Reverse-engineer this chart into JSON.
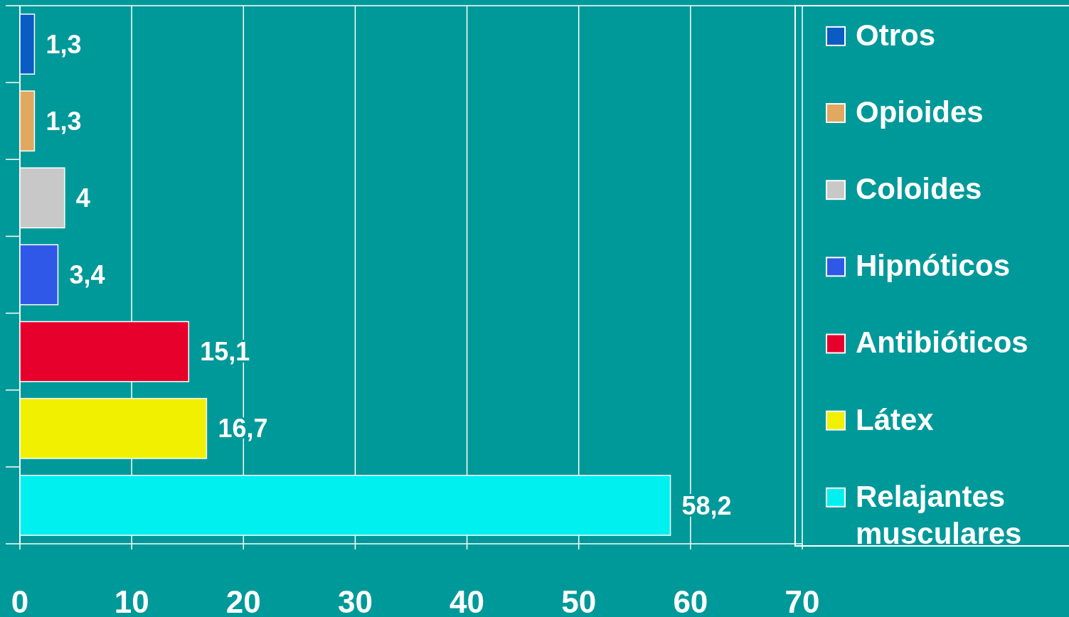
{
  "chart_data": {
    "type": "bar",
    "orientation": "horizontal",
    "categories": [
      null,
      null,
      null,
      null,
      null,
      null,
      null
    ],
    "series": [
      {
        "name": "Otros",
        "color": "#0a5cc4",
        "values": [
          1.3,
          null,
          null,
          null,
          null,
          null,
          null
        ],
        "value_labels": [
          "1,3",
          null,
          null,
          null,
          null,
          null,
          null
        ]
      },
      {
        "name": "Opioides",
        "color": "#e0a860",
        "values": [
          null,
          1.3,
          null,
          null,
          null,
          null,
          null
        ],
        "value_labels": [
          null,
          "1,3",
          null,
          null,
          null,
          null,
          null
        ]
      },
      {
        "name": "Coloides",
        "color": "#c8c8c8",
        "values": [
          null,
          null,
          4,
          null,
          null,
          null,
          null
        ],
        "value_labels": [
          null,
          null,
          "4",
          null,
          null,
          null,
          null
        ]
      },
      {
        "name": "Hipnóticos",
        "color": "#3058e8",
        "values": [
          null,
          null,
          null,
          3.4,
          null,
          null,
          null
        ],
        "value_labels": [
          null,
          null,
          null,
          "3,4",
          null,
          null,
          null
        ]
      },
      {
        "name": "Antibióticos",
        "color": "#e8002c",
        "values": [
          null,
          null,
          null,
          null,
          15.1,
          null,
          null
        ],
        "value_labels": [
          null,
          null,
          null,
          null,
          "15,1",
          null,
          null
        ]
      },
      {
        "name": "Látex",
        "color": "#f0f000",
        "values": [
          null,
          null,
          null,
          null,
          null,
          16.7,
          null
        ],
        "value_labels": [
          null,
          null,
          null,
          null,
          null,
          "16,7",
          null
        ]
      },
      {
        "name": "Relajantes musculares",
        "color": "#00f0f0",
        "values": [
          null,
          null,
          null,
          null,
          null,
          null,
          58.2
        ],
        "value_labels": [
          null,
          null,
          null,
          null,
          null,
          null,
          "58,2"
        ]
      }
    ],
    "xlim": [
      0,
      70
    ],
    "xticks": [
      0,
      10,
      20,
      30,
      40,
      50,
      60,
      70
    ],
    "grid": "x",
    "legend": "right",
    "tick_labels": "x"
  }
}
